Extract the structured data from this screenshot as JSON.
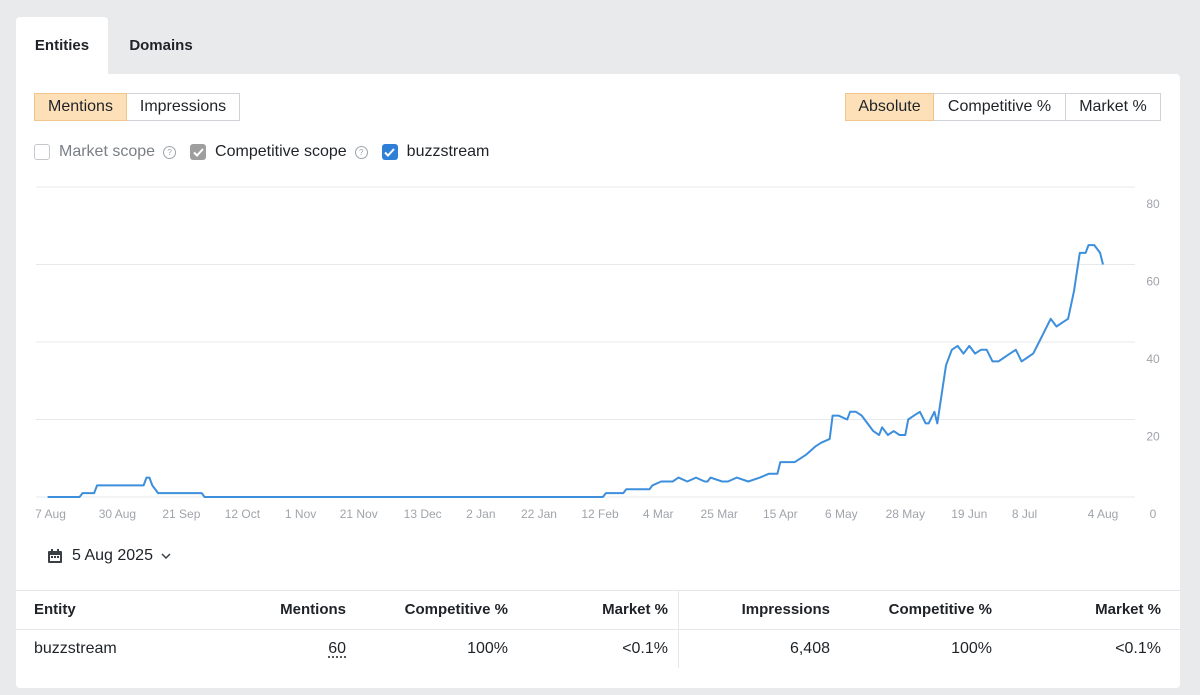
{
  "tabs": {
    "items": [
      "Entities",
      "Domains"
    ],
    "active": 0
  },
  "metric_toggle": {
    "items": [
      "Mentions",
      "Impressions"
    ],
    "active": 0
  },
  "mode_toggle": {
    "items": [
      "Absolute",
      "Competitive %",
      "Market %"
    ],
    "active": 0
  },
  "checkboxes": [
    {
      "label": "Market scope",
      "checked": false,
      "help": true,
      "color": "#9e9e9e"
    },
    {
      "label": "Competitive scope",
      "checked": true,
      "help": true,
      "color": "#9e9e9e"
    },
    {
      "label": "buzzstream",
      "checked": true,
      "help": false,
      "color": "#2f7fd8"
    }
  ],
  "chart_data": {
    "type": "line",
    "color": "#3d8fdc",
    "grid": true,
    "x": [
      -1,
      10,
      11,
      15,
      16,
      32,
      33,
      34,
      35,
      37,
      52,
      53,
      190,
      191,
      197,
      198,
      206,
      207,
      210,
      214,
      216,
      219,
      222,
      225,
      226,
      227,
      231,
      233,
      236,
      240,
      244,
      247,
      250,
      251,
      256,
      258,
      260,
      263,
      265,
      268,
      269,
      271,
      274,
      275,
      277,
      279,
      281,
      283,
      285,
      286,
      288,
      290,
      292,
      294,
      295,
      297,
      299,
      301,
      302,
      304,
      305,
      308,
      310,
      312,
      314,
      316,
      318,
      320,
      322,
      324,
      326,
      328,
      330,
      332,
      334,
      336,
      338,
      340,
      342,
      344,
      346,
      348,
      350,
      352,
      354,
      356,
      357,
      359,
      361,
      362
    ],
    "values": [
      0,
      0,
      1,
      1,
      3,
      3,
      5,
      5,
      3,
      1,
      1,
      0,
      0,
      1,
      1,
      2,
      2,
      3,
      4,
      4,
      5,
      4,
      5,
      4,
      4,
      5,
      4,
      4,
      5,
      4,
      5,
      6,
      6,
      9,
      9,
      10,
      11,
      13,
      14,
      15,
      21,
      21,
      20,
      22,
      22,
      21,
      19,
      17,
      16,
      18,
      16,
      17,
      16,
      16,
      20,
      21,
      22,
      19,
      19,
      22,
      19,
      34,
      38,
      39,
      37,
      39,
      37,
      38,
      38,
      35,
      35,
      36,
      37,
      38,
      35,
      36,
      37,
      40,
      43,
      46,
      44,
      45,
      46,
      53,
      63,
      63,
      65,
      65,
      63,
      60
    ],
    "xlim": [
      -5,
      373
    ],
    "xticks": [
      {
        "value": 0,
        "label": "7 Aug"
      },
      {
        "value": 23,
        "label": "30 Aug"
      },
      {
        "value": 45,
        "label": "21 Sep"
      },
      {
        "value": 66,
        "label": "12 Oct"
      },
      {
        "value": 86,
        "label": "1 Nov"
      },
      {
        "value": 106,
        "label": "21 Nov"
      },
      {
        "value": 128,
        "label": "13 Dec"
      },
      {
        "value": 148,
        "label": "2 Jan"
      },
      {
        "value": 168,
        "label": "22 Jan"
      },
      {
        "value": 189,
        "label": "12 Feb"
      },
      {
        "value": 209,
        "label": "4 Mar"
      },
      {
        "value": 230,
        "label": "25 Mar"
      },
      {
        "value": 251,
        "label": "15 Apr"
      },
      {
        "value": 272,
        "label": "6 May"
      },
      {
        "value": 294,
        "label": "28 May"
      },
      {
        "value": 316,
        "label": "19 Jun"
      },
      {
        "value": 335,
        "label": "8 Jul"
      },
      {
        "value": 362,
        "label": "4 Aug"
      }
    ],
    "ylim": [
      0,
      80
    ],
    "yticks": [
      0,
      20,
      40,
      60,
      80
    ]
  },
  "date_picker": {
    "label": "5 Aug 2025"
  },
  "table": {
    "headers": [
      "Entity",
      "Mentions",
      "Competitive %",
      "Market %",
      "Impressions",
      "Competitive %",
      "Market %"
    ],
    "rows": [
      [
        "buzzstream",
        "60",
        "100%",
        "<0.1%",
        "6,408",
        "100%",
        "<0.1%"
      ]
    ]
  }
}
